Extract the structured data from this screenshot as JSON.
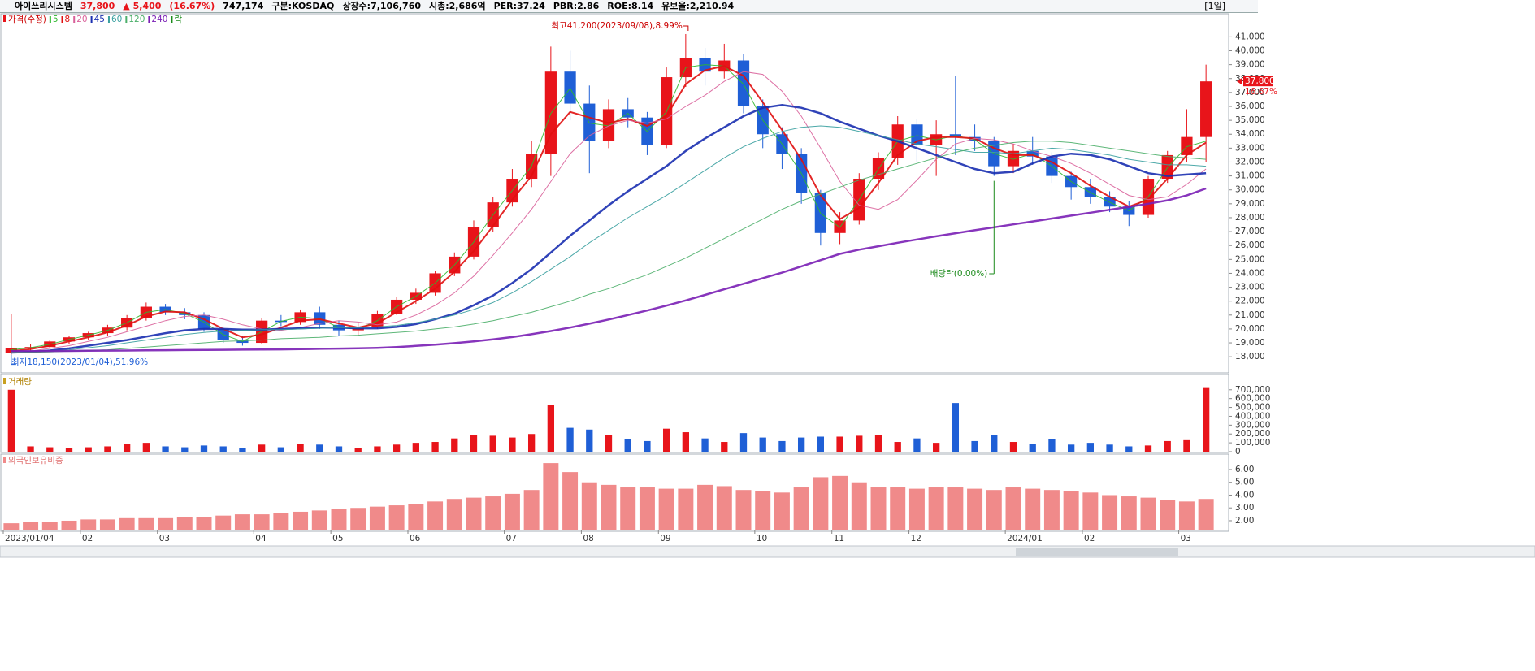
{
  "header": {
    "name": "아이쓰리시스템",
    "price": "37,800",
    "change": "▲ 5,400",
    "change_pct": "(16.67%)",
    "volume": "747,174",
    "market": "구분:KOSDAQ",
    "shares": "상장수:7,106,760",
    "market_cap": "시총:2,686억",
    "per": "PER:37.24",
    "pbr": "PBR:2.86",
    "roe": "ROE:8.14",
    "reserve": "유보율:2,210.94",
    "period": "[1일]"
  },
  "chart_data": [
    {
      "type": "candlestick",
      "price_name": "가격(수정)",
      "ex_dividend_name": "락",
      "up_color": "#e8141a",
      "down_color": "#1f5fd6",
      "last_price_label": "37,800",
      "last_change_label": "16.67%",
      "annotations": {
        "high": "최고41,200(2023/09/08),8.99%",
        "low": "최저18,150(2023/01/04),51.96%",
        "ex_dividend": "배당락(0.00%)"
      },
      "categories": [
        "2023/01/04",
        null,
        null,
        null,
        "02",
        null,
        null,
        null,
        "03",
        null,
        null,
        null,
        null,
        "04",
        null,
        null,
        null,
        "05",
        null,
        null,
        null,
        "06",
        null,
        null,
        null,
        null,
        "07",
        null,
        null,
        null,
        "08",
        null,
        null,
        null,
        "09",
        null,
        null,
        null,
        null,
        "10",
        null,
        null,
        null,
        "11",
        null,
        null,
        null,
        "12",
        null,
        null,
        null,
        null,
        "2024/01",
        null,
        null,
        null,
        "02",
        null,
        null,
        null,
        null,
        "03",
        null
      ],
      "open": [
        18250,
        18600,
        18700,
        19100,
        19400,
        19700,
        20100,
        20800,
        21600,
        21200,
        21000,
        20000,
        19200,
        19000,
        20600,
        20500,
        21200,
        20300,
        19900,
        20100,
        21100,
        22100,
        22600,
        24000,
        25200,
        27300,
        29100,
        30800,
        32600,
        38500,
        36200,
        33500,
        35800,
        35200,
        33200,
        38100,
        39500,
        38500,
        39300,
        36000,
        34000,
        32600,
        29800,
        26900,
        27800,
        30800,
        32300,
        34700,
        33200,
        34000,
        33800,
        33500,
        31700,
        32800,
        32400,
        31000,
        30200,
        29500,
        28800,
        28200,
        30800,
        32500,
        33800
      ],
      "high": [
        21100,
        18900,
        19200,
        19500,
        19800,
        20300,
        21000,
        21900,
        21800,
        21500,
        21200,
        20100,
        19500,
        20800,
        21000,
        21400,
        21600,
        20600,
        20400,
        21300,
        22300,
        22900,
        24200,
        25500,
        27800,
        29500,
        31500,
        33500,
        40300,
        40000,
        37500,
        36500,
        36600,
        35600,
        38800,
        41200,
        40200,
        40500,
        39800,
        36500,
        34500,
        33000,
        30000,
        28400,
        31200,
        32700,
        35300,
        35100,
        35000,
        38200,
        34700,
        33800,
        33300,
        33800,
        32700,
        31300,
        30800,
        29900,
        29200,
        31000,
        32800,
        35800,
        39000
      ],
      "low": [
        18150,
        18300,
        18600,
        18900,
        19200,
        19500,
        19900,
        20600,
        21000,
        20700,
        19800,
        19000,
        18800,
        18900,
        20200,
        20300,
        20000,
        19500,
        19500,
        20000,
        21000,
        21800,
        22400,
        23800,
        25000,
        27000,
        28800,
        30200,
        31000,
        35000,
        31200,
        33000,
        34500,
        32500,
        33000,
        37400,
        37500,
        38000,
        35500,
        33000,
        31500,
        29000,
        26000,
        26100,
        27500,
        30000,
        31800,
        32000,
        31000,
        32500,
        32800,
        31000,
        31200,
        31800,
        30500,
        29300,
        29000,
        28400,
        27400,
        28000,
        30500,
        32000,
        32000
      ],
      "close": [
        18600,
        18700,
        19100,
        19400,
        19700,
        20100,
        20800,
        21600,
        21200,
        21000,
        20000,
        19200,
        19000,
        20600,
        20500,
        21200,
        20300,
        19900,
        20100,
        21100,
        22100,
        22600,
        24000,
        25200,
        27300,
        29100,
        30800,
        32600,
        38500,
        36200,
        33500,
        35800,
        35200,
        33200,
        38100,
        39500,
        38500,
        39300,
        36000,
        34000,
        32600,
        29800,
        26900,
        27800,
        30800,
        32300,
        34700,
        33200,
        34000,
        33800,
        33500,
        31700,
        32800,
        32400,
        31000,
        30200,
        29500,
        28800,
        28200,
        30800,
        32500,
        33800,
        37800
      ],
      "series": [
        {
          "name": "5",
          "color": "#2db82d",
          "width": 1,
          "values": [
            18500,
            18650,
            18900,
            19250,
            19550,
            19900,
            20450,
            21200,
            21400,
            21100,
            20500,
            19600,
            19100,
            19800,
            20550,
            20850,
            20750,
            20100,
            20000,
            20600,
            21600,
            22350,
            23300,
            24600,
            26250,
            28200,
            29950,
            31700,
            35500,
            37300,
            34800,
            34600,
            35500,
            34200,
            35600,
            38800,
            39000,
            38900,
            37600,
            35000,
            33300,
            31200,
            28300,
            27300,
            29300,
            31500,
            33500,
            33900,
            33600,
            33900,
            33600,
            32600,
            32200,
            32600,
            31700,
            30600,
            29800,
            29100,
            28500,
            29500,
            31600,
            33100,
            33500
          ]
        },
        {
          "name": "8",
          "color": "#e01010",
          "width": 2,
          "values": [
            18400,
            18550,
            18800,
            19100,
            19400,
            19750,
            20250,
            20900,
            21250,
            21200,
            20700,
            20000,
            19400,
            19600,
            20100,
            20600,
            20700,
            20400,
            20100,
            20400,
            21200,
            22000,
            22900,
            24100,
            25600,
            27400,
            29300,
            31000,
            34000,
            35600,
            35200,
            34800,
            35100,
            34600,
            35300,
            37600,
            38600,
            38900,
            38200,
            36300,
            34300,
            32200,
            29600,
            27900,
            28700,
            30500,
            32500,
            33500,
            33800,
            33800,
            33700,
            33000,
            32500,
            32500,
            32000,
            31200,
            30300,
            29500,
            28800,
            29300,
            30800,
            32500,
            33400
          ]
        },
        {
          "name": "20",
          "color": "#d9609a",
          "width": 1,
          "values": [
            18300,
            18400,
            18600,
            18800,
            19100,
            19400,
            19800,
            20200,
            20600,
            20900,
            21000,
            20700,
            20300,
            20000,
            19900,
            20100,
            20400,
            20600,
            20500,
            20300,
            20500,
            21000,
            21700,
            22600,
            23800,
            25300,
            26900,
            28600,
            30600,
            32600,
            33900,
            34600,
            35000,
            34800,
            35100,
            36000,
            36800,
            37800,
            38500,
            38300,
            37100,
            35300,
            33000,
            30600,
            28900,
            28600,
            29300,
            30700,
            32200,
            33300,
            33700,
            33600,
            33300,
            32800,
            32400,
            31900,
            31200,
            30400,
            29600,
            29300,
            29500,
            30400,
            31500
          ]
        },
        {
          "name": "45",
          "color": "#1a2fb0",
          "width": 2.5,
          "values": [
            18300,
            18350,
            18450,
            18600,
            18800,
            19000,
            19200,
            19450,
            19700,
            19900,
            20000,
            20000,
            19950,
            19950,
            20000,
            20050,
            20100,
            20100,
            20050,
            20050,
            20150,
            20350,
            20700,
            21100,
            21700,
            22400,
            23300,
            24300,
            25500,
            26700,
            27800,
            28900,
            29900,
            30800,
            31700,
            32800,
            33700,
            34500,
            35300,
            35900,
            36100,
            35900,
            35500,
            34900,
            34400,
            33900,
            33500,
            33000,
            32500,
            32000,
            31500,
            31200,
            31300,
            31900,
            32400,
            32600,
            32500,
            32200,
            31700,
            31200,
            31000,
            31100,
            31200
          ]
        },
        {
          "name": "60",
          "color": "#3aa0a0",
          "width": 1,
          "values": [
            18300,
            18350,
            18400,
            18500,
            18650,
            18800,
            19000,
            19200,
            19400,
            19600,
            19750,
            19850,
            19900,
            19950,
            19950,
            20000,
            20050,
            20100,
            20100,
            20150,
            20250,
            20450,
            20700,
            21000,
            21400,
            21900,
            22600,
            23400,
            24300,
            25200,
            26200,
            27100,
            28000,
            28800,
            29600,
            30500,
            31400,
            32300,
            33100,
            33700,
            34200,
            34500,
            34600,
            34500,
            34200,
            33900,
            33600,
            33300,
            33100,
            32900,
            32700,
            32700,
            32600,
            32800,
            33000,
            32900,
            32700,
            32500,
            32200,
            32000,
            31800,
            31800,
            31700
          ]
        },
        {
          "name": "120",
          "color": "#4caf6a",
          "width": 1,
          "values": [
            18300,
            18320,
            18350,
            18400,
            18450,
            18500,
            18600,
            18700,
            18800,
            18900,
            19000,
            19100,
            19150,
            19200,
            19300,
            19350,
            19400,
            19500,
            19550,
            19650,
            19750,
            19850,
            20000,
            20150,
            20350,
            20600,
            20900,
            21200,
            21600,
            22000,
            22500,
            22900,
            23400,
            23900,
            24500,
            25100,
            25800,
            26500,
            27200,
            27900,
            28600,
            29200,
            29700,
            30200,
            30700,
            31100,
            31500,
            31900,
            32300,
            32700,
            33000,
            33200,
            33400,
            33500,
            33500,
            33400,
            33200,
            33000,
            32800,
            32600,
            32400,
            32300,
            32200
          ]
        },
        {
          "name": "240",
          "color": "#7a1fb5",
          "width": 2.5,
          "values": [
            18400,
            18400,
            18410,
            18420,
            18430,
            18440,
            18450,
            18460,
            18470,
            18480,
            18490,
            18500,
            18510,
            18520,
            18530,
            18550,
            18570,
            18590,
            18610,
            18640,
            18700,
            18780,
            18870,
            18980,
            19100,
            19250,
            19420,
            19620,
            19850,
            20100,
            20380,
            20680,
            21000,
            21330,
            21680,
            22050,
            22450,
            22850,
            23250,
            23650,
            24050,
            24500,
            24950,
            25400,
            25700,
            25950,
            26200,
            26430,
            26660,
            26880,
            27100,
            27310,
            27520,
            27730,
            27940,
            28150,
            28360,
            28570,
            28780,
            29000,
            29250,
            29600,
            30100
          ]
        }
      ],
      "ylim": [
        16900,
        42600
      ],
      "yticks": [
        {
          "value": 18000,
          "label": "18,000"
        },
        {
          "value": 19000,
          "label": "19,000"
        },
        {
          "value": 20000,
          "label": "20,000"
        },
        {
          "value": 21000,
          "label": "21,000"
        },
        {
          "value": 22000,
          "label": "22,000"
        },
        {
          "value": 23000,
          "label": "23,000"
        },
        {
          "value": 24000,
          "label": "24,000"
        },
        {
          "value": 25000,
          "label": "25,000"
        },
        {
          "value": 26000,
          "label": "26,000"
        },
        {
          "value": 27000,
          "label": "27,000"
        },
        {
          "value": 28000,
          "label": "28,000"
        },
        {
          "value": 29000,
          "label": "29,000"
        },
        {
          "value": 30000,
          "label": "30,000"
        },
        {
          "value": 31000,
          "label": "31,000"
        },
        {
          "value": 32000,
          "label": "32,000"
        },
        {
          "value": 33000,
          "label": "33,000"
        },
        {
          "value": 34000,
          "label": "34,000"
        },
        {
          "value": 35000,
          "label": "35,000"
        },
        {
          "value": 36000,
          "label": "36,000"
        },
        {
          "value": 37000,
          "label": "37,000"
        },
        {
          "value": 38000,
          "label": "38,000"
        },
        {
          "value": 39000,
          "label": "39,000"
        },
        {
          "value": 40000,
          "label": "40,000"
        },
        {
          "value": 41000,
          "label": "41,000"
        }
      ]
    },
    {
      "type": "bar",
      "title": "거래량",
      "color_by_price": true,
      "values": [
        700000,
        60000,
        50000,
        40000,
        50000,
        60000,
        90000,
        100000,
        60000,
        50000,
        70000,
        60000,
        40000,
        80000,
        50000,
        90000,
        80000,
        60000,
        40000,
        60000,
        80000,
        100000,
        110000,
        150000,
        190000,
        180000,
        160000,
        200000,
        530000,
        270000,
        250000,
        190000,
        140000,
        120000,
        260000,
        220000,
        150000,
        110000,
        210000,
        160000,
        120000,
        160000,
        170000,
        170000,
        180000,
        190000,
        110000,
        150000,
        100000,
        550000,
        120000,
        190000,
        110000,
        90000,
        140000,
        80000,
        100000,
        80000,
        60000,
        70000,
        120000,
        130000,
        720000
      ],
      "ylim": [
        0,
        790000
      ],
      "yticks": [
        0,
        {
          "value": 100000,
          "label": "100,000"
        },
        {
          "value": 200000,
          "label": "200,000"
        },
        {
          "value": 300000,
          "label": "300,000"
        },
        {
          "value": 400000,
          "label": "400,000"
        },
        {
          "value": 500000,
          "label": "500,000"
        },
        {
          "value": 600000,
          "label": "600,000"
        },
        {
          "value": 700000,
          "label": "700,000"
        }
      ]
    },
    {
      "type": "bar",
      "title": "외국인보유비중",
      "color": "#f08a8a",
      "values": [
        1.8,
        1.9,
        1.9,
        2.0,
        2.1,
        2.1,
        2.2,
        2.2,
        2.2,
        2.3,
        2.3,
        2.4,
        2.5,
        2.5,
        2.6,
        2.7,
        2.8,
        2.9,
        3.0,
        3.1,
        3.2,
        3.3,
        3.5,
        3.7,
        3.8,
        3.9,
        4.1,
        4.4,
        6.5,
        5.8,
        5.0,
        4.8,
        4.6,
        4.6,
        4.5,
        4.5,
        4.8,
        4.7,
        4.4,
        4.3,
        4.2,
        4.6,
        5.4,
        5.5,
        5.0,
        4.6,
        4.6,
        4.5,
        4.6,
        4.6,
        4.5,
        4.4,
        4.6,
        4.5,
        4.4,
        4.3,
        4.2,
        4.0,
        3.9,
        3.8,
        3.6,
        3.5,
        3.7
      ],
      "ylim": [
        1.3,
        6.76
      ],
      "yticks": [
        {
          "value": 2,
          "label": "2.00"
        },
        {
          "value": 3,
          "label": "3.00"
        },
        {
          "value": 4,
          "label": "4.00"
        },
        {
          "value": 5,
          "label": "5.00"
        },
        {
          "value": 6,
          "label": "6.00"
        }
      ]
    }
  ]
}
